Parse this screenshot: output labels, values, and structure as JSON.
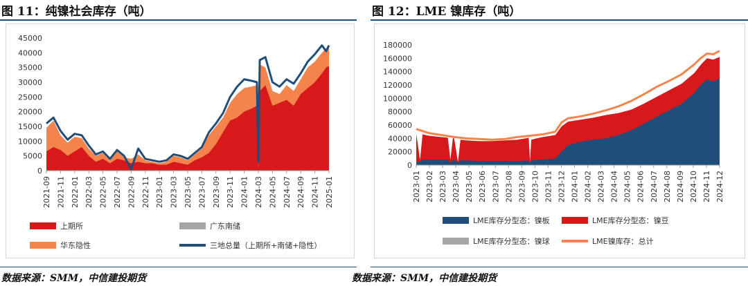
{
  "left": {
    "title": "图 11：纯镍社会库存（吨）",
    "source": "数据来源：SMM，中信建投期货",
    "chart_data": {
      "type": "area",
      "y_ticks": [
        0,
        5000,
        10000,
        15000,
        20000,
        25000,
        30000,
        35000,
        40000,
        45000
      ],
      "ylim": [
        0,
        45000
      ],
      "x_ticks": [
        "2021-09",
        "2021-11",
        "2022-01",
        "2022-03",
        "2022-05",
        "2022-07",
        "2022-09",
        "2022-11",
        "2023-01",
        "2023-03",
        "2023-05",
        "2023-07",
        "2023-09",
        "2023-11",
        "2024-01",
        "2024-03",
        "2024-05",
        "2024-07",
        "2024-09",
        "2024-11",
        "2025-01"
      ],
      "x_range": [
        0,
        40
      ],
      "series": [
        {
          "name": "上期所",
          "color": "#d7191c",
          "kind": "area",
          "x": [
            0,
            1,
            2,
            3,
            4,
            5,
            6,
            7,
            8,
            9,
            10,
            11,
            12,
            13,
            14,
            15,
            16,
            17,
            18,
            19,
            20,
            21,
            22,
            23,
            24,
            25,
            26,
            27,
            28,
            29,
            29.8,
            30,
            30.2,
            31,
            32,
            33,
            34,
            35,
            36,
            37,
            38,
            39,
            39.6,
            40
          ],
          "values": [
            6500,
            8000,
            7000,
            5000,
            6500,
            8000,
            5000,
            3000,
            4000,
            2500,
            4000,
            3500,
            2500,
            3000,
            2500,
            2500,
            2000,
            2000,
            3000,
            2500,
            2000,
            3500,
            4500,
            6000,
            9000,
            13000,
            17000,
            18000,
            20000,
            21000,
            22000,
            0,
            27000,
            29000,
            22000,
            23000,
            24000,
            22000,
            26000,
            28000,
            30000,
            33000,
            35000,
            35500
          ]
        },
        {
          "name": "广东南储",
          "color": "#a6a6a6",
          "kind": "area",
          "x": [
            0,
            40
          ],
          "values": [
            0,
            0
          ]
        },
        {
          "name": "华东隐性",
          "color": "#f4844c",
          "kind": "area",
          "x": [
            0,
            1,
            2,
            3,
            4,
            5,
            6,
            7,
            8,
            9,
            10,
            11,
            12,
            13,
            14,
            15,
            16,
            17,
            18,
            19,
            20,
            21,
            22,
            23,
            24,
            25,
            26,
            27,
            28,
            29,
            29.8,
            30,
            30.2,
            31,
            32,
            33,
            34,
            35,
            36,
            37,
            38,
            39,
            39.6,
            40
          ],
          "values": [
            14500,
            17000,
            12000,
            9500,
            11500,
            11000,
            7500,
            5000,
            6000,
            3500,
            6500,
            4500,
            4000,
            5500,
            3500,
            3000,
            2500,
            3000,
            5000,
            4500,
            3500,
            5500,
            7500,
            12000,
            15000,
            18000,
            23000,
            26000,
            28000,
            28500,
            29000,
            0,
            36000,
            35000,
            27000,
            26000,
            29000,
            27000,
            31000,
            35000,
            37000,
            40000,
            41500,
            41500
          ]
        },
        {
          "name": "三地总量（上期所+南储+隐性）",
          "color": "#1e4e79",
          "kind": "line",
          "x": [
            0,
            1,
            2,
            3,
            4,
            5,
            6,
            7,
            8,
            9,
            10,
            11,
            12,
            13,
            14,
            15,
            16,
            17,
            18,
            19,
            20,
            21,
            22,
            23,
            24,
            25,
            26,
            27,
            28,
            29,
            29.8,
            30,
            30.2,
            31,
            32,
            33,
            34,
            35,
            36,
            37,
            38,
            39,
            39.6,
            40
          ],
          "values": [
            16000,
            18000,
            13500,
            10500,
            12500,
            12000,
            8500,
            5500,
            6500,
            4000,
            7000,
            5000,
            500,
            7500,
            4000,
            3500,
            3000,
            3500,
            5500,
            5000,
            4000,
            6000,
            8000,
            13000,
            16000,
            19500,
            25000,
            28500,
            31000,
            30500,
            30000,
            3000,
            37500,
            38500,
            30000,
            28500,
            31000,
            29500,
            33000,
            37000,
            39500,
            42500,
            40500,
            42500
          ]
        }
      ]
    }
  },
  "right": {
    "title": "图 12：LME 镍库存（吨）",
    "source": "数据来源：SMM，中信建投期货",
    "chart_data": {
      "type": "area",
      "y_ticks": [
        0,
        20000,
        40000,
        60000,
        80000,
        100000,
        120000,
        140000,
        160000,
        180000
      ],
      "ylim": [
        0,
        180000
      ],
      "x_ticks": [
        "2023-01",
        "2023-02",
        "2023-03",
        "2023-04",
        "2023-05",
        "2023-06",
        "2023-07",
        "2023-08",
        "2023-09",
        "2023-10",
        "2023-11",
        "2023-12",
        "2024-01",
        "2024-02",
        "2024-03",
        "2024-04",
        "2024-05",
        "2024-06",
        "2024-07",
        "2024-08",
        "2024-09",
        "2024-10",
        "2024-11",
        "2024-12"
      ],
      "x_range": [
        0,
        24
      ],
      "series": [
        {
          "name": "LME库存分型态：镍板",
          "color": "#1e4e79",
          "kind": "area",
          "x": [
            0,
            0.3,
            0.5,
            1,
            2,
            2.5,
            2.7,
            2.9,
            3,
            3.3,
            3.5,
            4,
            5,
            6,
            7,
            8,
            8.9,
            9,
            9.1,
            9.5,
            10,
            11,
            11.5,
            12,
            13,
            14,
            15,
            16,
            17,
            18,
            19,
            20,
            21,
            22,
            22.5,
            23,
            23.5,
            24
          ],
          "values": [
            5000,
            5000,
            8000,
            8000,
            8000,
            8000,
            3000,
            8000,
            8000,
            4000,
            7000,
            7000,
            6000,
            6000,
            6000,
            6000,
            7000,
            3000,
            7000,
            8000,
            8000,
            10000,
            20000,
            30000,
            35000,
            38000,
            40000,
            45000,
            52000,
            62000,
            72000,
            82000,
            92000,
            108000,
            120000,
            128000,
            125000,
            130000
          ]
        },
        {
          "name": "LME库存分型态：镍豆",
          "color": "#d7191c",
          "kind": "area",
          "x": [
            0,
            0.3,
            0.5,
            1,
            2,
            2.5,
            2.7,
            2.9,
            3,
            3.3,
            3.5,
            4,
            5,
            6,
            7,
            8,
            8.9,
            9,
            9.1,
            9.5,
            10,
            11,
            11.5,
            12,
            13,
            14,
            15,
            16,
            17,
            18,
            19,
            20,
            21,
            22,
            22.5,
            23,
            23.5,
            24
          ],
          "values": [
            47000,
            8000,
            46000,
            44000,
            42000,
            41000,
            8000,
            41000,
            40000,
            5000,
            38000,
            37000,
            36000,
            36000,
            37000,
            38000,
            41000,
            5000,
            38000,
            40000,
            42000,
            45000,
            58000,
            65000,
            68000,
            71000,
            75000,
            78000,
            83000,
            92000,
            102000,
            112000,
            122000,
            138000,
            150000,
            160000,
            158000,
            162000
          ]
        },
        {
          "name": "LME库存分型态：镍球",
          "color": "#a6a6a6",
          "kind": "area",
          "x": [
            0,
            24
          ],
          "values": [
            0,
            0
          ]
        },
        {
          "name": "LME镍库存：总计",
          "color": "#f4844c",
          "kind": "line",
          "x": [
            0,
            1,
            2,
            3,
            4,
            5,
            6,
            7,
            8,
            9,
            10,
            11,
            11.5,
            12,
            13,
            14,
            15,
            16,
            17,
            18,
            19,
            20,
            21,
            22,
            22.5,
            23,
            23.5,
            24
          ],
          "values": [
            54000,
            48000,
            45000,
            42000,
            40000,
            39000,
            38000,
            39000,
            42000,
            44000,
            46000,
            50000,
            64000,
            70000,
            73000,
            77000,
            82000,
            88000,
            96000,
            106000,
            117000,
            126000,
            136000,
            151000,
            160000,
            167000,
            166000,
            171000
          ]
        }
      ]
    }
  }
}
